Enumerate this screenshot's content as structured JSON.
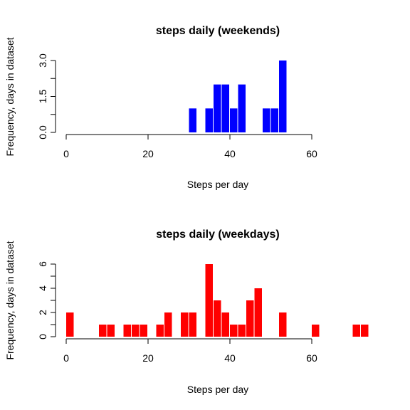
{
  "chart_data": [
    {
      "type": "bar",
      "title": "steps daily (weekends)",
      "xlabel": "Steps per day",
      "ylabel": "Frequency, days in dataset",
      "xlim": [
        0,
        60
      ],
      "ylim": [
        0,
        3
      ],
      "x_ticks": [
        "0",
        "20",
        "40",
        "60"
      ],
      "y_ticks": [
        "0.0",
        "1.5",
        "3.0"
      ],
      "color": "#0000ff",
      "bin_width": 2,
      "bins": [
        {
          "start": 30,
          "count": 1
        },
        {
          "start": 34,
          "count": 1
        },
        {
          "start": 36,
          "count": 2
        },
        {
          "start": 38,
          "count": 2
        },
        {
          "start": 40,
          "count": 1
        },
        {
          "start": 42,
          "count": 2
        },
        {
          "start": 48,
          "count": 1
        },
        {
          "start": 50,
          "count": 1
        },
        {
          "start": 52,
          "count": 3
        }
      ]
    },
    {
      "type": "bar",
      "title": "steps  daily (weekdays)",
      "xlabel": "Steps per day",
      "ylabel": "Frequency, days in dataset",
      "xlim": [
        0,
        60
      ],
      "ylim": [
        0,
        6
      ],
      "x_ticks": [
        "0",
        "20",
        "40",
        "60"
      ],
      "y_ticks": [
        "0",
        "2",
        "4",
        "6"
      ],
      "color": "#ff0000",
      "bin_width": 2,
      "bins": [
        {
          "start": 0,
          "count": 2
        },
        {
          "start": 8,
          "count": 1
        },
        {
          "start": 10,
          "count": 1
        },
        {
          "start": 14,
          "count": 1
        },
        {
          "start": 16,
          "count": 1
        },
        {
          "start": 18,
          "count": 1
        },
        {
          "start": 22,
          "count": 1
        },
        {
          "start": 24,
          "count": 2
        },
        {
          "start": 28,
          "count": 2
        },
        {
          "start": 30,
          "count": 2
        },
        {
          "start": 34,
          "count": 6
        },
        {
          "start": 36,
          "count": 3
        },
        {
          "start": 38,
          "count": 2
        },
        {
          "start": 40,
          "count": 1
        },
        {
          "start": 42,
          "count": 1
        },
        {
          "start": 44,
          "count": 3
        },
        {
          "start": 46,
          "count": 4
        },
        {
          "start": 52,
          "count": 2
        },
        {
          "start": 60,
          "count": 1
        },
        {
          "start": 70,
          "count": 1
        },
        {
          "start": 72,
          "count": 1
        }
      ]
    }
  ]
}
